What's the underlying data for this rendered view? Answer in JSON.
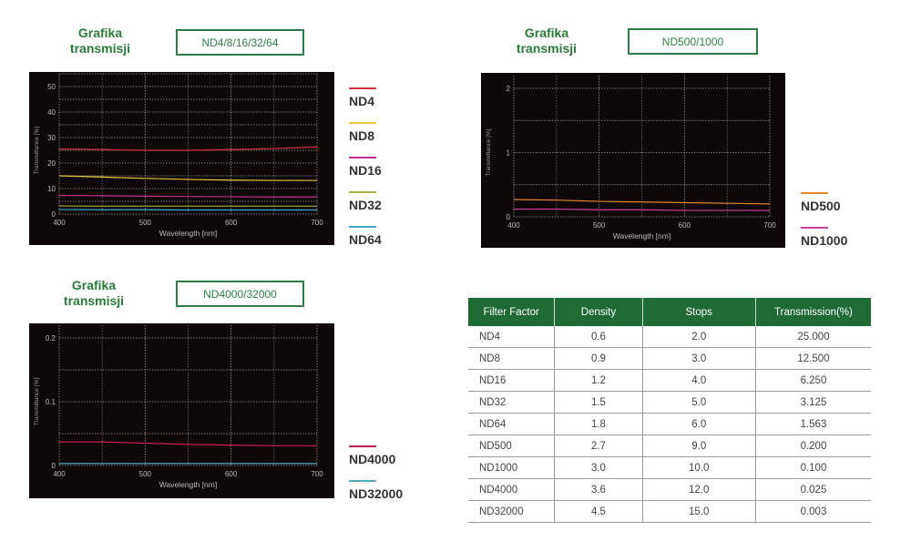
{
  "charts_header": {
    "section_title": "Grafika transmisji"
  },
  "chart_data": [
    {
      "type": "line",
      "title": "ND4/8/16/32/64",
      "xlabel": "Wavelength [nm]",
      "ylabel": "Transmittance [%]",
      "xlim": [
        400,
        700
      ],
      "ylim": [
        0,
        55
      ],
      "xticks": [
        400,
        500,
        600,
        700
      ],
      "yticks": [
        0,
        10,
        20,
        30,
        40,
        50
      ],
      "grid": true,
      "legend": "right",
      "x": [
        400,
        450,
        500,
        550,
        600,
        650,
        700
      ],
      "series": [
        {
          "name": "ND4",
          "color": "#d83040",
          "values": [
            25.5,
            25.3,
            25.0,
            25.0,
            25.3,
            25.7,
            26.3
          ]
        },
        {
          "name": "ND8",
          "color": "#e8c840",
          "values": [
            15.0,
            14.5,
            14.0,
            13.6,
            13.3,
            13.2,
            13.2
          ]
        },
        {
          "name": "ND16",
          "color": "#c03090",
          "values": [
            7.3,
            7.2,
            7.0,
            6.9,
            6.8,
            6.7,
            6.7
          ]
        },
        {
          "name": "ND32",
          "color": "#a8b040",
          "values": [
            3.2,
            3.1,
            3.1,
            3.1,
            3.1,
            3.1,
            3.1
          ]
        },
        {
          "name": "ND64",
          "color": "#40a8d0",
          "values": [
            1.8,
            1.7,
            1.7,
            1.6,
            1.6,
            1.6,
            1.6
          ]
        }
      ]
    },
    {
      "type": "line",
      "title": "ND500/1000",
      "xlabel": "Wavelength [nm]",
      "ylabel": "Transmittance [%]",
      "xlim": [
        400,
        700
      ],
      "ylim": [
        0,
        2.2
      ],
      "xticks": [
        400,
        500,
        600,
        700
      ],
      "yticks": [
        0,
        1,
        2
      ],
      "grid": true,
      "legend": "bottom-right",
      "x": [
        400,
        450,
        500,
        550,
        600,
        650,
        700
      ],
      "series": [
        {
          "name": "ND500",
          "color": "#e08830",
          "values": [
            0.27,
            0.26,
            0.24,
            0.23,
            0.22,
            0.21,
            0.2
          ]
        },
        {
          "name": "ND1000",
          "color": "#d040a0",
          "values": [
            0.12,
            0.12,
            0.11,
            0.11,
            0.1,
            0.1,
            0.1
          ]
        }
      ]
    },
    {
      "type": "line",
      "title": "ND4000/32000",
      "xlabel": "Wavelength [nm]",
      "ylabel": "Transmittance [%]",
      "xlim": [
        400,
        700
      ],
      "ylim": [
        0,
        0.22
      ],
      "xticks": [
        400,
        500,
        600,
        700
      ],
      "yticks": [
        0,
        0.1,
        0.2
      ],
      "grid": true,
      "legend": "bottom-right",
      "x": [
        400,
        450,
        500,
        550,
        600,
        650,
        700
      ],
      "series": [
        {
          "name": "ND4000",
          "color": "#c82050",
          "values": [
            0.037,
            0.037,
            0.035,
            0.033,
            0.032,
            0.031,
            0.031
          ]
        },
        {
          "name": "ND32000",
          "color": "#50a8c8",
          "values": [
            0.003,
            0.003,
            0.003,
            0.003,
            0.003,
            0.003,
            0.003
          ]
        }
      ]
    }
  ],
  "table": {
    "headers": [
      "Filter Factor",
      "Density",
      "Stops",
      "Transmission(%)"
    ],
    "rows": [
      [
        "ND4",
        "0.6",
        "2.0",
        "25.000"
      ],
      [
        "ND8",
        "0.9",
        "3.0",
        "12.500"
      ],
      [
        "ND16",
        "1.2",
        "4.0",
        "6.250"
      ],
      [
        "ND32",
        "1.5",
        "5.0",
        "3.125"
      ],
      [
        "ND64",
        "1.8",
        "6.0",
        "1.563"
      ],
      [
        "ND500",
        "2.7",
        "9.0",
        "0.200"
      ],
      [
        "ND1000",
        "3.0",
        "10.0",
        "0.100"
      ],
      [
        "ND4000",
        "3.6",
        "12.0",
        "0.025"
      ],
      [
        "ND32000",
        "4.5",
        "15.0",
        "0.003"
      ]
    ],
    "header_color": "#1e6b34"
  }
}
